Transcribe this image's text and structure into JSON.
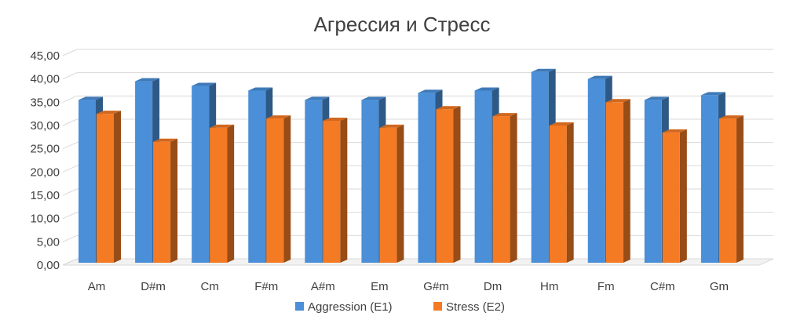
{
  "chart_data": {
    "type": "bar",
    "title": "Агрессия и Стресс",
    "xlabel": "",
    "ylabel": "",
    "categories": [
      "Am",
      "D#m",
      "Cm",
      "F#m",
      "A#m",
      "Em",
      "G#m",
      "Dm",
      "Hm",
      "Fm",
      "C#m",
      "Gm"
    ],
    "series": [
      {
        "name": "Aggression (E1)",
        "color": "#4a8fd8",
        "values": [
          35.0,
          39.0,
          38.0,
          37.0,
          35.0,
          35.0,
          36.5,
          37.0,
          41.0,
          39.5,
          35.0,
          36.0
        ]
      },
      {
        "name": "Stress (E2)",
        "color": "#f57a24",
        "values": [
          32.0,
          26.0,
          29.0,
          31.0,
          30.5,
          29.0,
          33.0,
          31.5,
          29.5,
          34.5,
          28.0,
          31.0
        ]
      }
    ],
    "ylim": [
      0,
      45
    ],
    "ytick_step": 5,
    "ytick_labels": [
      "0,00",
      "5,00",
      "10,00",
      "15,00",
      "20,00",
      "25,00",
      "30,00",
      "35,00",
      "40,00",
      "45,00"
    ],
    "grid": true,
    "legend": "bottom"
  }
}
